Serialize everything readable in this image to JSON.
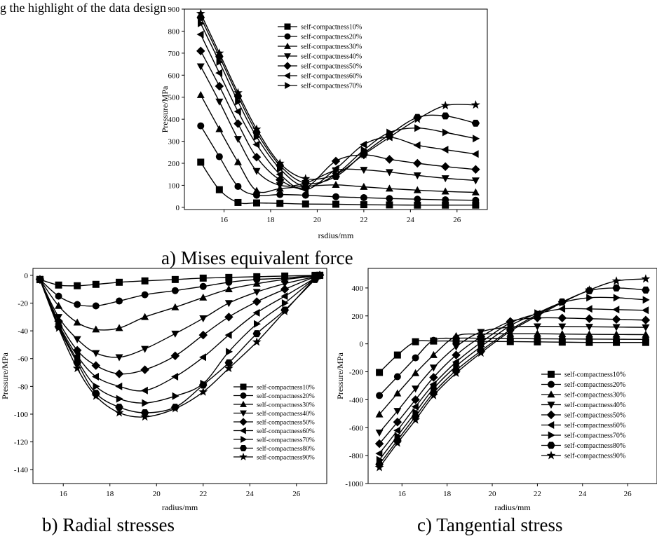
{
  "page": {
    "top_fragment": "g the highlight of the data design",
    "captions": [
      "a) Mises equivalent force",
      "b) Radial stresses",
      "c) Tangential stress"
    ]
  },
  "chart_data": [
    {
      "type": "line",
      "caption": "a) Mises equivalent force",
      "xlabel": "rsdius/mm",
      "ylabel": "Pressure/MPa",
      "xlim": [
        14.3,
        27.3
      ],
      "ylim": [
        -10,
        900
      ],
      "xticks": [
        16,
        18,
        20,
        22,
        24,
        26
      ],
      "yticks": [
        0,
        100,
        200,
        300,
        400,
        500,
        600,
        700,
        800,
        900
      ],
      "legend_position": "top-center",
      "series": [
        {
          "name": "self-compactness10%",
          "marker": "square",
          "x": [
            15.0,
            15.8,
            16.6,
            17.4,
            18.4,
            19.5,
            20.8,
            22.0,
            23.1,
            24.3,
            25.5,
            26.8
          ],
          "values": [
            205,
            80,
            22,
            20,
            18,
            15,
            14,
            12,
            11,
            10,
            10,
            10
          ]
        },
        {
          "name": "self-compactness20%",
          "marker": "circle",
          "x": [
            15.0,
            15.8,
            16.6,
            17.4,
            18.4,
            19.5,
            20.8,
            22.0,
            23.1,
            24.3,
            25.5,
            26.8
          ],
          "values": [
            370,
            230,
            95,
            55,
            58,
            55,
            48,
            44,
            40,
            37,
            34,
            32
          ]
        },
        {
          "name": "self-compactness30%",
          "marker": "triangle-up",
          "x": [
            15.0,
            15.8,
            16.6,
            17.4,
            18.4,
            19.5,
            20.8,
            22.0,
            23.1,
            24.3,
            25.5,
            26.8
          ],
          "values": [
            510,
            355,
            205,
            75,
            85,
            95,
            102,
            93,
            85,
            78,
            72,
            68
          ]
        },
        {
          "name": "self-compactness40%",
          "marker": "triangle-down",
          "x": [
            15.0,
            15.8,
            16.6,
            17.4,
            18.4,
            19.5,
            20.8,
            22.0,
            23.1,
            24.3,
            25.5,
            26.8
          ],
          "values": [
            640,
            480,
            310,
            165,
            100,
            110,
            168,
            170,
            160,
            145,
            132,
            122
          ]
        },
        {
          "name": "self-compactness50%",
          "marker": "diamond",
          "x": [
            15.0,
            15.8,
            16.6,
            17.4,
            18.4,
            19.5,
            20.8,
            22.0,
            23.1,
            24.3,
            25.5,
            26.8
          ],
          "values": [
            710,
            550,
            380,
            228,
            125,
            90,
            210,
            238,
            218,
            200,
            185,
            172
          ]
        },
        {
          "name": "self-compactness60%",
          "marker": "triangle-left",
          "x": [
            15.0,
            15.8,
            16.6,
            17.4,
            18.4,
            19.5,
            20.8,
            22.0,
            23.1,
            24.3,
            25.5,
            26.8
          ],
          "values": [
            785,
            610,
            435,
            285,
            150,
            80,
            175,
            285,
            318,
            282,
            262,
            242
          ]
        },
        {
          "name": "self-compactness70%",
          "marker": "triangle-right",
          "x": [
            15.0,
            15.8,
            16.6,
            17.4,
            18.4,
            19.5,
            20.8,
            22.0,
            23.1,
            24.3,
            25.5,
            26.8
          ],
          "values": [
            835,
            660,
            480,
            320,
            175,
            95,
            150,
            260,
            340,
            360,
            340,
            312
          ]
        },
        {
          "name": "",
          "marker": "hexagon",
          "x": [
            15.0,
            15.8,
            16.6,
            17.4,
            18.4,
            19.5,
            20.8,
            22.0,
            23.1,
            24.3,
            25.5,
            26.8
          ],
          "values": [
            862,
            685,
            505,
            340,
            190,
            110,
            140,
            245,
            330,
            408,
            415,
            382
          ]
        },
        {
          "name": "",
          "marker": "star",
          "x": [
            15.0,
            15.8,
            16.6,
            17.4,
            18.4,
            19.5,
            20.8,
            22.0,
            23.1,
            24.3,
            25.5,
            26.8
          ],
          "values": [
            880,
            700,
            520,
            355,
            200,
            130,
            150,
            240,
            318,
            400,
            462,
            465
          ]
        }
      ]
    },
    {
      "type": "line",
      "caption": "b) Radial stresses",
      "xlabel": "radius/mm",
      "ylabel": "Pressure/MPa",
      "xlim": [
        14.7,
        27.3
      ],
      "ylim": [
        -150,
        5
      ],
      "xticks": [
        16,
        18,
        20,
        22,
        24,
        26
      ],
      "yticks": [
        0,
        -20,
        -40,
        -60,
        -80,
        -100,
        -120,
        -140
      ],
      "legend_position": "bottom-right",
      "series": [
        {
          "name": "self-compactness10%",
          "marker": "square",
          "x": [
            15.0,
            15.8,
            16.6,
            17.4,
            18.4,
            19.5,
            20.8,
            22.0,
            23.1,
            24.3,
            25.5,
            26.8,
            27.0
          ],
          "values": [
            -3,
            -7,
            -7.5,
            -6.5,
            -5,
            -4,
            -3,
            -2,
            -1.5,
            -1,
            -0.5,
            0,
            0
          ]
        },
        {
          "name": "self-compactness20%",
          "marker": "circle",
          "x": [
            15.0,
            15.8,
            16.6,
            17.4,
            18.4,
            19.5,
            20.8,
            22.0,
            23.1,
            24.3,
            25.5,
            26.8,
            27.0
          ],
          "values": [
            -3,
            -15,
            -21,
            -22,
            -18.5,
            -14,
            -11,
            -8,
            -5,
            -3,
            -2,
            0,
            0
          ]
        },
        {
          "name": "self-compactness30%",
          "marker": "triangle-up",
          "x": [
            15.0,
            15.8,
            16.6,
            17.4,
            18.4,
            19.5,
            20.8,
            22.0,
            23.1,
            24.3,
            25.5,
            26.8,
            27.0
          ],
          "values": [
            -3,
            -22,
            -34,
            -39,
            -38,
            -30,
            -23,
            -16,
            -10,
            -6,
            -3,
            -0.5,
            0
          ]
        },
        {
          "name": "self-compactness40%",
          "marker": "triangle-down",
          "x": [
            15.0,
            15.8,
            16.6,
            17.4,
            18.4,
            19.5,
            20.8,
            22.0,
            23.1,
            24.3,
            25.5,
            26.8,
            27.0
          ],
          "values": [
            -3,
            -30,
            -46,
            -56,
            -59,
            -53,
            -42,
            -31,
            -20,
            -12,
            -6,
            -1,
            0
          ]
        },
        {
          "name": "self-compactness50%",
          "marker": "diamond",
          "x": [
            15.0,
            15.8,
            16.6,
            17.4,
            18.4,
            19.5,
            20.8,
            22.0,
            23.1,
            24.3,
            25.5,
            26.8,
            27.0
          ],
          "values": [
            -3,
            -33,
            -54,
            -65,
            -71,
            -68,
            -58,
            -43,
            -30,
            -19,
            -10,
            -1,
            0
          ]
        },
        {
          "name": "self-compactness60%",
          "marker": "triangle-left",
          "x": [
            15.0,
            15.8,
            16.6,
            17.4,
            18.4,
            19.5,
            20.8,
            22.0,
            23.1,
            24.3,
            25.5,
            26.8,
            27.0
          ],
          "values": [
            -3,
            -35,
            -58,
            -73,
            -80,
            -83,
            -73,
            -59,
            -43,
            -27,
            -15,
            -2,
            0
          ]
        },
        {
          "name": "self-compactness70%",
          "marker": "triangle-right",
          "x": [
            15.0,
            15.8,
            16.6,
            17.4,
            18.4,
            19.5,
            20.8,
            22.0,
            23.1,
            24.3,
            25.5,
            26.8,
            27.0
          ],
          "values": [
            -3,
            -36,
            -61,
            -80,
            -89,
            -92,
            -87,
            -78,
            -55,
            -35,
            -20,
            -2,
            0
          ]
        },
        {
          "name": "self-compactness80%",
          "marker": "hexagon",
          "x": [
            15.0,
            15.8,
            16.6,
            17.4,
            18.4,
            19.5,
            20.8,
            22.0,
            23.1,
            24.3,
            25.5,
            26.8,
            27.0
          ],
          "values": [
            -3,
            -37,
            -63,
            -85,
            -95,
            -99,
            -95,
            -79,
            -63,
            -42,
            -25,
            -3,
            0
          ]
        },
        {
          "name": "self-compactness90%",
          "marker": "star",
          "x": [
            15.0,
            15.8,
            16.6,
            17.4,
            18.4,
            19.5,
            20.8,
            22.0,
            23.1,
            24.3,
            25.5,
            26.8,
            27.0
          ],
          "values": [
            -3,
            -38,
            -67,
            -87,
            -99,
            -102,
            -96,
            -84,
            -67,
            -48,
            -26,
            -2,
            0
          ]
        }
      ]
    },
    {
      "type": "line",
      "caption": "c) Tangential stress",
      "xlabel": "radius/mm",
      "ylabel": "Pressure/MPa",
      "xlim": [
        14.5,
        27.3
      ],
      "ylim": [
        -1000,
        540
      ],
      "xticks": [
        16,
        18,
        20,
        22,
        24,
        26
      ],
      "yticks": [
        400,
        200,
        0,
        -200,
        -400,
        -600,
        -800,
        -1000
      ],
      "legend_position": "bottom-right",
      "series": [
        {
          "name": "self-compactness10%",
          "marker": "square",
          "x": [
            15.0,
            15.8,
            16.6,
            17.4,
            18.4,
            19.5,
            20.8,
            22.0,
            23.1,
            24.3,
            25.5,
            26.8
          ],
          "values": [
            -205,
            -80,
            15,
            20,
            20,
            18,
            16,
            14,
            12,
            10,
            10,
            10
          ]
        },
        {
          "name": "self-compactness20%",
          "marker": "circle",
          "x": [
            15.0,
            15.8,
            16.6,
            17.4,
            18.4,
            19.5,
            20.8,
            22.0,
            23.1,
            24.3,
            25.5,
            26.8
          ],
          "values": [
            -370,
            -235,
            -100,
            25,
            40,
            40,
            38,
            36,
            35,
            34,
            33,
            32
          ]
        },
        {
          "name": "self-compactness30%",
          "marker": "triangle-up",
          "x": [
            15.0,
            15.8,
            16.6,
            17.4,
            18.4,
            19.5,
            20.8,
            22.0,
            23.1,
            24.3,
            25.5,
            26.8
          ],
          "values": [
            -505,
            -355,
            -210,
            -80,
            55,
            70,
            72,
            72,
            70,
            68,
            67,
            66
          ]
        },
        {
          "name": "self-compactness40%",
          "marker": "triangle-down",
          "x": [
            15.0,
            15.8,
            16.6,
            17.4,
            18.4,
            19.5,
            20.8,
            22.0,
            23.1,
            24.3,
            25.5,
            26.8
          ],
          "values": [
            -635,
            -480,
            -320,
            -170,
            -20,
            85,
            120,
            125,
            124,
            122,
            120,
            118
          ]
        },
        {
          "name": "self-compactness50%",
          "marker": "diamond",
          "x": [
            15.0,
            15.8,
            16.6,
            17.4,
            18.4,
            19.5,
            20.8,
            22.0,
            23.1,
            24.3,
            25.5,
            26.8
          ],
          "values": [
            -715,
            -560,
            -400,
            -240,
            -80,
            50,
            160,
            185,
            185,
            180,
            175,
            170
          ]
        },
        {
          "name": "self-compactness60%",
          "marker": "triangle-left",
          "x": [
            15.0,
            15.8,
            16.6,
            17.4,
            18.4,
            19.5,
            20.8,
            22.0,
            23.1,
            24.3,
            25.5,
            26.8
          ],
          "values": [
            -785,
            -620,
            -450,
            -290,
            -130,
            10,
            150,
            215,
            250,
            250,
            245,
            240
          ]
        },
        {
          "name": "self-compactness70%",
          "marker": "triangle-right",
          "x": [
            15.0,
            15.8,
            16.6,
            17.4,
            18.4,
            19.5,
            20.8,
            22.0,
            23.1,
            24.3,
            25.5,
            26.8
          ],
          "values": [
            -830,
            -660,
            -490,
            -320,
            -160,
            -20,
            130,
            220,
            295,
            330,
            330,
            315
          ]
        },
        {
          "name": "self-compactness80%",
          "marker": "hexagon",
          "x": [
            15.0,
            15.8,
            16.6,
            17.4,
            18.4,
            19.5,
            20.8,
            22.0,
            23.1,
            24.3,
            25.5,
            26.8
          ],
          "values": [
            -862,
            -690,
            -520,
            -350,
            -190,
            -50,
            100,
            210,
            300,
            380,
            400,
            385
          ]
        },
        {
          "name": "self-compactness90%",
          "marker": "star",
          "x": [
            15.0,
            15.8,
            16.6,
            17.4,
            18.4,
            19.5,
            20.8,
            22.0,
            23.1,
            24.3,
            25.5,
            26.8
          ],
          "values": [
            -885,
            -710,
            -545,
            -370,
            -210,
            -65,
            90,
            200,
            295,
            385,
            450,
            465
          ]
        }
      ]
    }
  ]
}
